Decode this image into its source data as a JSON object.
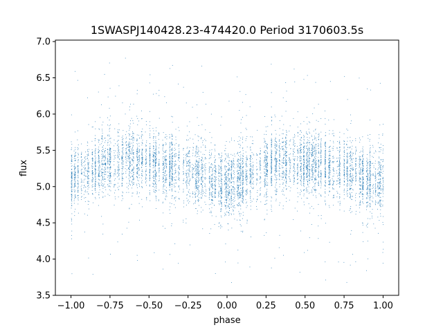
{
  "chart_data": {
    "type": "scatter",
    "title": "1SWASPJ140428.23-474420.0 Period 3170603.5s",
    "xlabel": "phase",
    "ylabel": "flux",
    "xlim": [
      -1.1,
      1.1
    ],
    "ylim": [
      3.5,
      7.02
    ],
    "xticks": [
      -1.0,
      -0.75,
      -0.5,
      -0.25,
      0.0,
      0.25,
      0.5,
      0.75,
      1.0
    ],
    "xtick_labels": [
      "−1.00",
      "−0.75",
      "−0.50",
      "−0.25",
      "0.00",
      "0.25",
      "0.50",
      "0.75",
      "1.00"
    ],
    "yticks": [
      3.5,
      4.0,
      4.5,
      5.0,
      5.5,
      6.0,
      6.5,
      7.0
    ],
    "ytick_labels": [
      "3.5",
      "4.0",
      "4.5",
      "5.0",
      "5.5",
      "6.0",
      "6.5",
      "7.0"
    ],
    "grid": false,
    "point_color": "#1f77b4",
    "series": [
      {
        "x_range": [
          -1.0,
          1.0
        ],
        "mean_profile": {
          "phase": [
            -1.0,
            -0.9,
            -0.8,
            -0.7,
            -0.6,
            -0.5,
            -0.4,
            -0.3,
            -0.2,
            -0.1,
            0.0,
            0.1,
            0.2,
            0.3,
            0.4,
            0.5,
            0.6,
            0.7,
            0.8,
            0.9,
            1.0
          ],
          "flux": [
            5.15,
            5.2,
            5.32,
            5.35,
            5.38,
            5.33,
            5.28,
            5.25,
            5.2,
            5.1,
            5.05,
            5.1,
            5.25,
            5.33,
            5.38,
            5.33,
            5.3,
            5.25,
            5.2,
            5.1,
            5.08
          ]
        },
        "flux_spread": [
          4.6,
          6.0
        ],
        "flux_extremes": [
          3.65,
          6.85
        ]
      }
    ]
  }
}
